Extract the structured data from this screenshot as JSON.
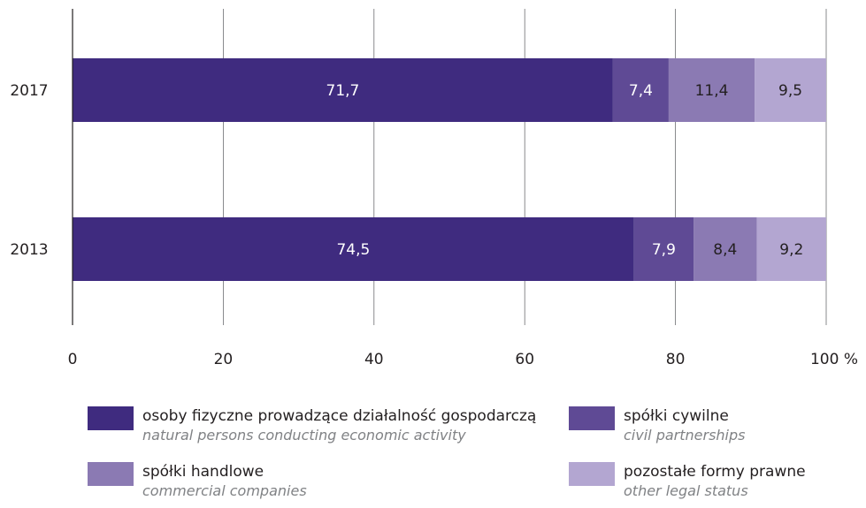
{
  "chart_data": {
    "type": "bar",
    "orientation": "horizontal",
    "stacked": true,
    "categories": [
      "2017",
      "2013"
    ],
    "series": [
      {
        "name": "osoby fizyczne prowadzące działalność gospodarczą",
        "name_en": "natural persons conducting economic activity",
        "values": [
          71.7,
          74.5
        ],
        "labels": [
          "71,7",
          "74,5"
        ],
        "color": "#3f2b7f",
        "label_color": "#ffffff"
      },
      {
        "name": "spółki cywilne",
        "name_en": "civil partnerships",
        "values": [
          7.4,
          7.9
        ],
        "labels": [
          "7,4",
          "7,9"
        ],
        "color": "#5f4a95",
        "label_color": "#ffffff"
      },
      {
        "name": "spółki handlowe",
        "name_en": "commercial companies",
        "values": [
          11.4,
          8.4
        ],
        "labels": [
          "11,4",
          "8,4"
        ],
        "color": "#8b7ab3",
        "label_color": "#231f20"
      },
      {
        "name": "pozostałe formy prawne",
        "name_en": "other legal status",
        "values": [
          9.5,
          9.2
        ],
        "labels": [
          "9,5",
          "9,2"
        ],
        "color": "#b3a6d1",
        "label_color": "#231f20"
      }
    ],
    "xlim": [
      0,
      100
    ],
    "xticks": [
      0,
      20,
      40,
      60,
      80,
      100
    ],
    "xtick_labels": [
      "0",
      "20",
      "40",
      "60",
      "80",
      "100 %"
    ],
    "grid": true,
    "legend_position": "bottom"
  }
}
